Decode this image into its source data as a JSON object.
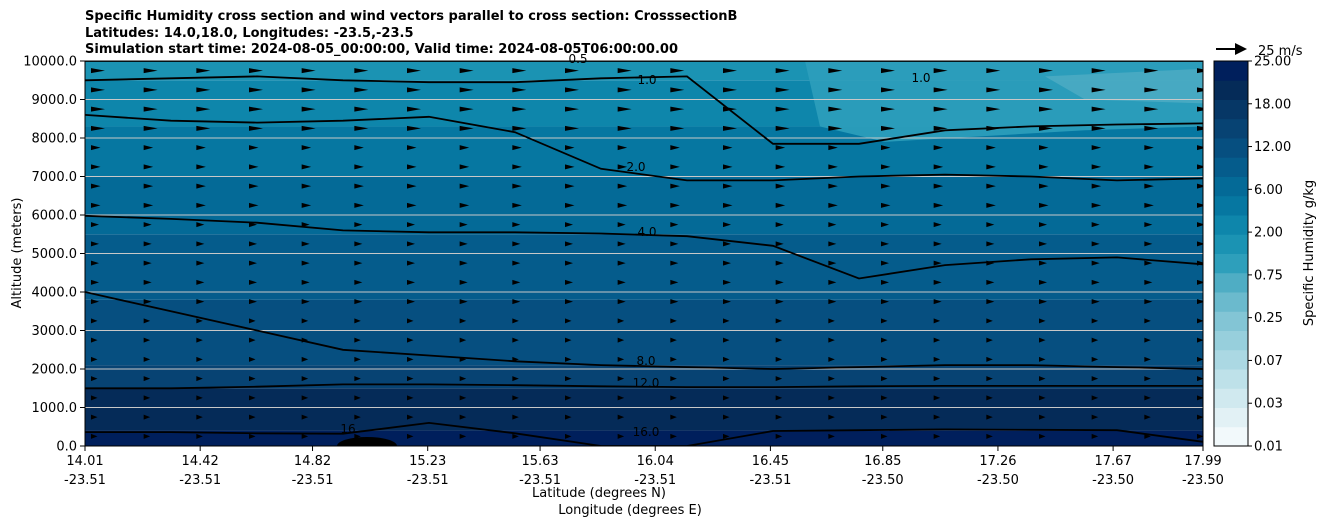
{
  "title_lines": [
    "Specific Humidity cross section and wind vectors parallel to cross section: CrosssectionB",
    "Latitudes: 14.0,18.0, Longitudes: -23.5,-23.5",
    "Simulation start time: 2024-08-05_00:00:00, Valid time: 2024-08-05T06:00:00.00"
  ],
  "quiver_key": "25 m/s",
  "chart_data": {
    "type": "heatmap",
    "title": "Specific Humidity cross section and wind vectors parallel to cross section: CrosssectionB",
    "xlabel_lat": "Latitude (degrees N)",
    "xlabel_lon": "Longitude (degrees E)",
    "ylabel": "Altitude (meters)",
    "ylim": [
      0,
      10000
    ],
    "grid": "horizontal",
    "y_ticks": [
      "0.0",
      "1000.0",
      "2000.0",
      "3000.0",
      "4000.0",
      "5000.0",
      "6000.0",
      "7000.0",
      "8000.0",
      "9000.0",
      "10000.0"
    ],
    "x_ticks_lat": [
      "14.01",
      "14.42",
      "14.82",
      "15.23",
      "15.63",
      "16.04",
      "16.45",
      "16.85",
      "17.26",
      "17.67",
      "17.99"
    ],
    "x_ticks_lon": [
      "-23.51",
      "-23.51",
      "-23.51",
      "-23.51",
      "-23.51",
      "-23.51",
      "-23.51",
      "-23.50",
      "-23.50",
      "-23.50",
      "-23.50"
    ],
    "colorbar": {
      "label": "Specific Humidity g/kg",
      "tick_labels": [
        "0.01",
        "0.03",
        "0.07",
        "0.25",
        "0.75",
        "2.00",
        "6.00",
        "12.00",
        "18.00",
        "25.00"
      ],
      "levels": 20,
      "colors": [
        "#f2f9fb",
        "#e2f1f5",
        "#d0e9ef",
        "#bee1e9",
        "#abd8e3",
        "#97cfdc",
        "#83c5d5",
        "#6bbacd",
        "#4fadc4",
        "#2e9fbb",
        "#1b93b3",
        "#0e86ab",
        "#0677a1",
        "#046a97",
        "#055c8c",
        "#064f80",
        "#074373",
        "#063766",
        "#052b58",
        "#001f5c"
      ]
    },
    "contours": [
      {
        "label": "16.0",
        "altitude": [
          360,
          360,
          330,
          320,
          600,
          330,
          0,
          0,
          390,
          410,
          430,
          420,
          410,
          110
        ]
      },
      {
        "label": "12.0",
        "altitude": [
          1500,
          1500,
          1540,
          1600,
          1600,
          1580,
          1550,
          1530,
          1530,
          1550,
          1560,
          1560,
          1560,
          1560
        ]
      },
      {
        "label": "8.0",
        "altitude": [
          4000,
          3500,
          3000,
          2500,
          2350,
          2200,
          2100,
          2050,
          2000,
          2050,
          2100,
          2100,
          2050,
          2000
        ]
      },
      {
        "label": "4.0",
        "altitude": [
          5980,
          5900,
          5800,
          5600,
          5550,
          5550,
          5520,
          5450,
          5200,
          4350,
          4700,
          4850,
          4900,
          4720
        ]
      },
      {
        "label": "2.0",
        "altitude": [
          8600,
          8450,
          8400,
          8450,
          8550,
          8150,
          7200,
          6900,
          6900,
          7000,
          7050,
          7000,
          6900,
          6950
        ]
      },
      {
        "label": "1.0",
        "altitude": [
          9500,
          9550,
          9600,
          9500,
          9450,
          9450,
          9550,
          9600,
          7850,
          7850,
          8200,
          8300,
          8350,
          8380
        ]
      },
      {
        "label": "0.5",
        "altitude": [
          10000,
          10000,
          10000,
          10000,
          10000,
          10000,
          10000,
          10000,
          10000,
          10000,
          10000,
          10000,
          10000,
          10000
        ]
      }
    ],
    "contour_labels_shown": [
      "1.0",
      "2.0",
      "4.0",
      "8.0",
      "12.0",
      "16.0",
      "16",
      "1.0",
      "0.5"
    ],
    "wind_vectors": "rightward arrows, strongest above 8000 m, weak near surface"
  }
}
